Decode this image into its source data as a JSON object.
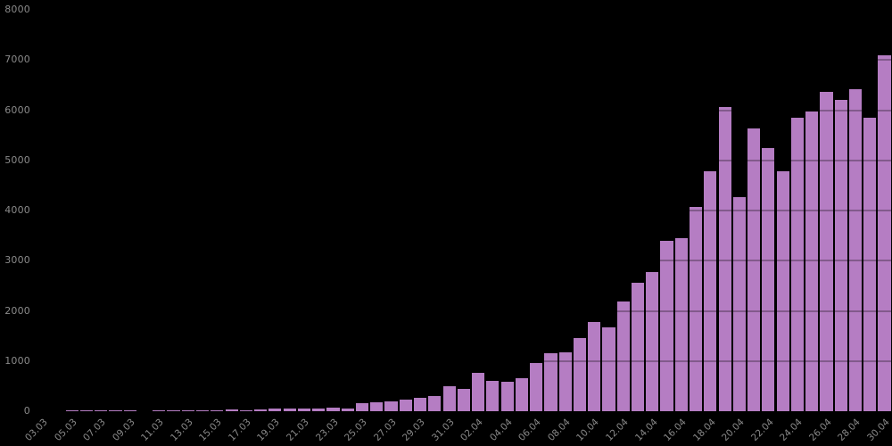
{
  "chart_data": {
    "type": "bar",
    "title": "",
    "xlabel": "",
    "ylabel": "",
    "x": [
      "03.03",
      "04.03",
      "05.03",
      "06.03",
      "07.03",
      "08.03",
      "09.03",
      "10.03",
      "11.03",
      "12.03",
      "13.03",
      "14.03",
      "15.03",
      "16.03",
      "17.03",
      "18.03",
      "19.03",
      "20.03",
      "21.03",
      "22.03",
      "23.03",
      "24.03",
      "25.03",
      "26.03",
      "27.03",
      "28.03",
      "29.03",
      "30.03",
      "31.03",
      "01.04",
      "02.04",
      "03.04",
      "04.04",
      "05.04",
      "06.04",
      "07.04",
      "08.04",
      "09.04",
      "10.04",
      "11.04",
      "12.04",
      "13.04",
      "14.04",
      "15.04",
      "16.04",
      "17.04",
      "18.04",
      "19.04",
      "20.04",
      "21.04",
      "22.04",
      "23.04",
      "24.04",
      "25.04",
      "26.04",
      "27.04",
      "28.04",
      "29.04",
      "30.04"
    ],
    "values": [
      0,
      0,
      1,
      6,
      4,
      3,
      3,
      0,
      8,
      6,
      11,
      14,
      4,
      30,
      21,
      33,
      52,
      54,
      53,
      61,
      71,
      57,
      163,
      182,
      196,
      228,
      270,
      302,
      501,
      440,
      771,
      601,
      582,
      658,
      954,
      1154,
      1175,
      1459,
      1786,
      1667,
      2186,
      2558,
      2774,
      3388,
      3448,
      4070,
      4785,
      6060,
      4268,
      5642,
      5236,
      4774,
      5849,
      5966,
      6361,
      6198,
      6411,
      5841,
      7099
    ],
    "x_tick_every": 2,
    "x_tick_labels_shown": [
      "03.03",
      "05.03",
      "07.03",
      "09.03",
      "11.03",
      "13.03",
      "15.03",
      "17.03",
      "19.03",
      "21.03",
      "23.03",
      "25.03",
      "27.03",
      "29.03",
      "31.03",
      "02.04",
      "04.04",
      "06.04",
      "08.04",
      "10.04",
      "12.04",
      "14.04",
      "16.04",
      "18.04",
      "20.04",
      "22.04",
      "24.04",
      "26.04",
      "28.04",
      "30.04"
    ],
    "x_tick_rotation_deg": -45,
    "ylim": [
      0,
      8000
    ],
    "y_ticks": [
      0,
      1000,
      2000,
      3000,
      4000,
      5000,
      6000,
      7000,
      8000
    ],
    "grid": "horizontal-overlay-on-bars",
    "legend": "none",
    "colors": {
      "background": "#000000",
      "bar": "#b57dc3",
      "tick_label": "#8a8a8a",
      "gridline_overlay": "rgba(0,0,0,0.28)"
    }
  }
}
